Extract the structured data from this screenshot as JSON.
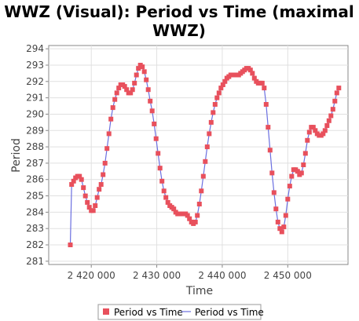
{
  "chart_data": {
    "type": "line",
    "title": "WWZ (Visual): Period vs Time (maximal WWZ)",
    "xlabel": "Time",
    "ylabel": "Period",
    "xlim": [
      2413500,
      2459200
    ],
    "ylim": [
      280.8,
      294.2
    ],
    "x_ticks": [
      2420000,
      2430000,
      2440000,
      2450000
    ],
    "x_tick_labels": [
      "2 420 000",
      "2 430 000",
      "2 440 000",
      "2 450 000"
    ],
    "y_ticks": [
      281,
      282,
      283,
      284,
      285,
      286,
      287,
      288,
      289,
      290,
      291,
      292,
      293,
      294
    ],
    "y_tick_labels": [
      "281",
      "282",
      "283",
      "284",
      "285",
      "286",
      "287",
      "288",
      "289",
      "290",
      "291",
      "292",
      "293",
      "294"
    ],
    "grid": true,
    "legend_position": "bottom",
    "series": [
      {
        "name": "Period vs Time",
        "marker": "square",
        "color": "#e8505c",
        "line_color": "#6b6fe0",
        "points": [
          [
            2416800,
            282.0
          ],
          [
            2417000,
            285.7
          ],
          [
            2417300,
            285.9
          ],
          [
            2417600,
            286.1
          ],
          [
            2417900,
            286.2
          ],
          [
            2418200,
            286.2
          ],
          [
            2418500,
            286.0
          ],
          [
            2418800,
            285.5
          ],
          [
            2419100,
            285.0
          ],
          [
            2419400,
            284.6
          ],
          [
            2419700,
            284.3
          ],
          [
            2420000,
            284.1
          ],
          [
            2420300,
            284.1
          ],
          [
            2420600,
            284.4
          ],
          [
            2420900,
            284.9
          ],
          [
            2421200,
            285.4
          ],
          [
            2421500,
            285.7
          ],
          [
            2421800,
            286.3
          ],
          [
            2422100,
            287.0
          ],
          [
            2422400,
            287.9
          ],
          [
            2422700,
            288.8
          ],
          [
            2423000,
            289.7
          ],
          [
            2423300,
            290.4
          ],
          [
            2423600,
            290.9
          ],
          [
            2423900,
            291.3
          ],
          [
            2424200,
            291.6
          ],
          [
            2424500,
            291.8
          ],
          [
            2424800,
            291.8
          ],
          [
            2425100,
            291.7
          ],
          [
            2425400,
            291.5
          ],
          [
            2425700,
            291.3
          ],
          [
            2426000,
            291.3
          ],
          [
            2426300,
            291.5
          ],
          [
            2426600,
            291.9
          ],
          [
            2426900,
            292.4
          ],
          [
            2427200,
            292.8
          ],
          [
            2427500,
            293.0
          ],
          [
            2427800,
            292.9
          ],
          [
            2428100,
            292.6
          ],
          [
            2428400,
            292.1
          ],
          [
            2428700,
            291.5
          ],
          [
            2429000,
            290.8
          ],
          [
            2429300,
            290.2
          ],
          [
            2429600,
            289.4
          ],
          [
            2429900,
            288.5
          ],
          [
            2430200,
            287.6
          ],
          [
            2430500,
            286.7
          ],
          [
            2430800,
            285.9
          ],
          [
            2431100,
            285.3
          ],
          [
            2431400,
            284.9
          ],
          [
            2431700,
            284.6
          ],
          [
            2432000,
            284.4
          ],
          [
            2432300,
            284.3
          ],
          [
            2432600,
            284.2
          ],
          [
            2432900,
            284.0
          ],
          [
            2433200,
            283.9
          ],
          [
            2433500,
            283.9
          ],
          [
            2433800,
            283.9
          ],
          [
            2434100,
            283.9
          ],
          [
            2434400,
            283.9
          ],
          [
            2434700,
            283.8
          ],
          [
            2435000,
            283.6
          ],
          [
            2435300,
            283.4
          ],
          [
            2435600,
            283.3
          ],
          [
            2435900,
            283.4
          ],
          [
            2436200,
            283.8
          ],
          [
            2436500,
            284.5
          ],
          [
            2436800,
            285.3
          ],
          [
            2437100,
            286.2
          ],
          [
            2437400,
            287.1
          ],
          [
            2437700,
            288.0
          ],
          [
            2438000,
            288.8
          ],
          [
            2438300,
            289.5
          ],
          [
            2438600,
            290.1
          ],
          [
            2438900,
            290.6
          ],
          [
            2439200,
            291.0
          ],
          [
            2439500,
            291.3
          ],
          [
            2439800,
            291.6
          ],
          [
            2440100,
            291.8
          ],
          [
            2440400,
            292.0
          ],
          [
            2440700,
            292.2
          ],
          [
            2441000,
            292.3
          ],
          [
            2441300,
            292.4
          ],
          [
            2441600,
            292.4
          ],
          [
            2441900,
            292.4
          ],
          [
            2442200,
            292.4
          ],
          [
            2442500,
            292.4
          ],
          [
            2442800,
            292.5
          ],
          [
            2443100,
            292.6
          ],
          [
            2443400,
            292.7
          ],
          [
            2443700,
            292.8
          ],
          [
            2444000,
            292.8
          ],
          [
            2444300,
            292.7
          ],
          [
            2444600,
            292.5
          ],
          [
            2444900,
            292.2
          ],
          [
            2445200,
            292.0
          ],
          [
            2445500,
            291.9
          ],
          [
            2445800,
            291.9
          ],
          [
            2446100,
            291.9
          ],
          [
            2446400,
            291.6
          ],
          [
            2446700,
            290.6
          ],
          [
            2447000,
            289.2
          ],
          [
            2447300,
            287.8
          ],
          [
            2447600,
            286.4
          ],
          [
            2447900,
            285.2
          ],
          [
            2448200,
            284.2
          ],
          [
            2448500,
            283.4
          ],
          [
            2448800,
            283.0
          ],
          [
            2449100,
            282.8
          ],
          [
            2449400,
            283.1
          ],
          [
            2449700,
            283.8
          ],
          [
            2450000,
            284.8
          ],
          [
            2450300,
            285.6
          ],
          [
            2450600,
            286.2
          ],
          [
            2450900,
            286.6
          ],
          [
            2451200,
            286.6
          ],
          [
            2451500,
            286.5
          ],
          [
            2451800,
            286.3
          ],
          [
            2452100,
            286.4
          ],
          [
            2452400,
            286.9
          ],
          [
            2452700,
            287.6
          ],
          [
            2453000,
            288.4
          ],
          [
            2453300,
            288.9
          ],
          [
            2453600,
            289.2
          ],
          [
            2453900,
            289.2
          ],
          [
            2454200,
            289.0
          ],
          [
            2454500,
            288.8
          ],
          [
            2454800,
            288.7
          ],
          [
            2455100,
            288.7
          ],
          [
            2455400,
            288.8
          ],
          [
            2455700,
            289.0
          ],
          [
            2456000,
            289.3
          ],
          [
            2456300,
            289.6
          ],
          [
            2456600,
            289.9
          ],
          [
            2456900,
            290.3
          ],
          [
            2457200,
            290.8
          ],
          [
            2457500,
            291.3
          ],
          [
            2457800,
            291.6
          ]
        ]
      }
    ]
  },
  "legend": {
    "marker_entry": "Period vs Time",
    "line_entry": "Period vs Time"
  }
}
